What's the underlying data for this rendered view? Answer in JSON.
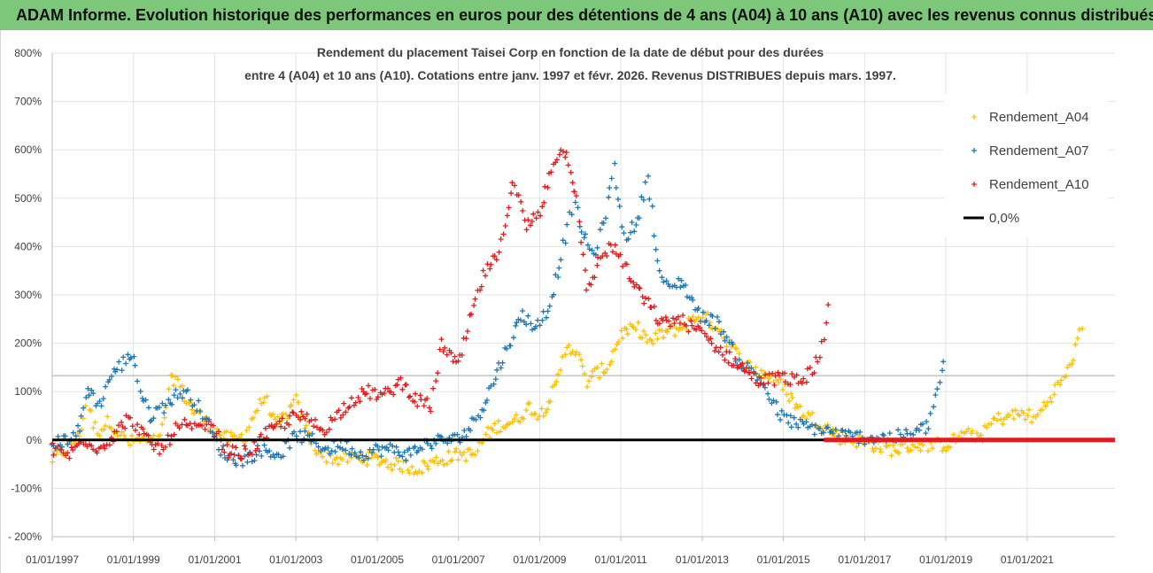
{
  "banner": {
    "text": "ADAM Informe. Evolution historique des performances en euros pour des détentions de 4 ans (A04) à 10 ans (A10) avec les revenus connus distribués",
    "color": "#7dc77b"
  },
  "chart_data": {
    "type": "scatter",
    "title_line1": "Rendement du placement Taisei Corp en fonction de la date de début pour des durées",
    "title_line2": "entre 4 (A04) et 10 ans (A10). Cotations entre janv. 1997 et févr. 2026. Revenus DISTRIBUES depuis mars. 1997.",
    "x_range": [
      "1997-01-01",
      "2023-03-01"
    ],
    "ylim": [
      -200,
      800
    ],
    "y_ticks": [
      -200,
      -100,
      0,
      100,
      200,
      300,
      400,
      500,
      600,
      700,
      800
    ],
    "y_tick_labels": [
      "- 200%",
      "-100%",
      "0%",
      "100%",
      "200%",
      "300%",
      "400%",
      "500%",
      "600%",
      "700%",
      "800%"
    ],
    "x_ticks": [
      "1997-01-01",
      "1999-01-01",
      "2001-01-01",
      "2003-01-01",
      "2005-01-01",
      "2007-01-01",
      "2009-01-01",
      "2011-01-01",
      "2013-01-01",
      "2015-01-01",
      "2017-01-01",
      "2019-01-01",
      "2021-01-01"
    ],
    "x_tick_labels": [
      "01/01/1997",
      "01/01/1999",
      "01/01/2001",
      "01/01/2003",
      "01/01/2005",
      "01/01/2007",
      "01/01/2009",
      "01/01/2011",
      "01/01/2013",
      "01/01/2015",
      "01/01/2017",
      "01/01/2019",
      "01/01/2021"
    ],
    "grid": true,
    "legend_position": "top-right",
    "reference_line_value": 133,
    "series": [
      {
        "name": "Rendement_A04",
        "color": "#ffc000",
        "points": [
          [
            "1997-01-01",
            -40
          ],
          [
            "1997-05-01",
            -20
          ],
          [
            "1997-09-01",
            10
          ],
          [
            "1997-11-15",
            90
          ],
          [
            "1998-01-01",
            30
          ],
          [
            "1998-03-01",
            20
          ],
          [
            "1998-06-01",
            40
          ],
          [
            "1998-09-01",
            10
          ],
          [
            "1998-12-01",
            -5
          ],
          [
            "1999-03-01",
            0
          ],
          [
            "1999-06-01",
            -5
          ],
          [
            "1999-09-01",
            0
          ],
          [
            "1999-12-01",
            120
          ],
          [
            "2000-01-15",
            130
          ],
          [
            "2000-04-01",
            90
          ],
          [
            "2000-07-01",
            60
          ],
          [
            "2000-10-01",
            40
          ],
          [
            "2001-01-01",
            20
          ],
          [
            "2001-04-01",
            5
          ],
          [
            "2001-07-01",
            0
          ],
          [
            "2001-10-01",
            10
          ],
          [
            "2002-01-01",
            60
          ],
          [
            "2002-04-01",
            90
          ],
          [
            "2002-07-01",
            30
          ],
          [
            "2002-10-01",
            50
          ],
          [
            "2003-01-01",
            80
          ],
          [
            "2003-03-01",
            40
          ],
          [
            "2003-06-01",
            -10
          ],
          [
            "2003-09-01",
            -30
          ],
          [
            "2004-01-01",
            -40
          ],
          [
            "2004-06-01",
            -35
          ],
          [
            "2005-01-01",
            -40
          ],
          [
            "2005-06-01",
            -50
          ],
          [
            "2006-01-01",
            -60
          ],
          [
            "2006-06-01",
            -45
          ],
          [
            "2007-01-01",
            -30
          ],
          [
            "2007-06-01",
            -30
          ],
          [
            "2007-09-01",
            10
          ],
          [
            "2008-01-01",
            30
          ],
          [
            "2008-06-01",
            40
          ],
          [
            "2008-10-01",
            70
          ],
          [
            "2009-01-01",
            50
          ],
          [
            "2009-06-01",
            110
          ],
          [
            "2009-09-01",
            200
          ],
          [
            "2009-12-01",
            180
          ],
          [
            "2010-03-01",
            120
          ],
          [
            "2010-06-01",
            140
          ],
          [
            "2010-09-01",
            150
          ],
          [
            "2011-01-01",
            220
          ],
          [
            "2011-06-01",
            230
          ],
          [
            "2011-10-01",
            200
          ],
          [
            "2012-01-01",
            220
          ],
          [
            "2012-06-01",
            230
          ],
          [
            "2013-01-01",
            260
          ],
          [
            "2013-06-01",
            230
          ],
          [
            "2014-01-01",
            160
          ],
          [
            "2014-06-01",
            140
          ],
          [
            "2014-10-01",
            130
          ],
          [
            "2015-01-01",
            110
          ],
          [
            "2015-06-01",
            60
          ],
          [
            "2016-01-01",
            30
          ],
          [
            "2016-06-01",
            5
          ],
          [
            "2017-01-01",
            -5
          ],
          [
            "2017-06-01",
            -15
          ],
          [
            "2017-10-01",
            -20
          ],
          [
            "2018-04-01",
            -10
          ],
          [
            "2019-01-01",
            -10
          ],
          [
            "2019-06-01",
            10
          ],
          [
            "2019-12-01",
            10
          ],
          [
            "2020-03-01",
            40
          ],
          [
            "2020-08-01",
            50
          ],
          [
            "2021-01-01",
            55
          ],
          [
            "2021-03-01",
            40
          ],
          [
            "2021-06-01",
            70
          ],
          [
            "2021-10-01",
            110
          ],
          [
            "2022-01-01",
            140
          ],
          [
            "2022-04-01",
            200
          ],
          [
            "2022-06-01",
            250
          ]
        ]
      },
      {
        "name": "Rendement_A07",
        "color": "#1f77b4",
        "points": [
          [
            "1997-01-01",
            -10
          ],
          [
            "1997-05-01",
            0
          ],
          [
            "1997-09-01",
            20
          ],
          [
            "1997-11-15",
            110
          ],
          [
            "1998-03-01",
            70
          ],
          [
            "1998-06-01",
            130
          ],
          [
            "1998-10-01",
            160
          ],
          [
            "1999-01-01",
            180
          ],
          [
            "1999-03-01",
            100
          ],
          [
            "1999-06-01",
            50
          ],
          [
            "1999-10-01",
            70
          ],
          [
            "2000-01-01",
            90
          ],
          [
            "2000-04-01",
            100
          ],
          [
            "2000-07-01",
            80
          ],
          [
            "2000-10-01",
            50
          ],
          [
            "2001-01-01",
            0
          ],
          [
            "2001-04-01",
            -30
          ],
          [
            "2001-07-01",
            -40
          ],
          [
            "2001-10-01",
            -40
          ],
          [
            "2002-03-01",
            -20
          ],
          [
            "2002-08-01",
            -30
          ],
          [
            "2003-01-01",
            10
          ],
          [
            "2003-06-01",
            0
          ],
          [
            "2003-10-01",
            -20
          ],
          [
            "2004-03-01",
            -10
          ],
          [
            "2004-08-01",
            -30
          ],
          [
            "2005-01-01",
            -20
          ],
          [
            "2005-06-01",
            -20
          ],
          [
            "2005-10-01",
            -30
          ],
          [
            "2006-03-01",
            -10
          ],
          [
            "2006-08-01",
            0
          ],
          [
            "2006-12-01",
            0
          ],
          [
            "2007-04-01",
            20
          ],
          [
            "2007-09-01",
            80
          ],
          [
            "2008-01-01",
            150
          ],
          [
            "2008-04-01",
            200
          ],
          [
            "2008-08-01",
            260
          ],
          [
            "2008-12-01",
            230
          ],
          [
            "2009-04-01",
            280
          ],
          [
            "2009-08-01",
            400
          ],
          [
            "2009-11-01",
            500
          ],
          [
            "2010-02-01",
            420
          ],
          [
            "2010-05-01",
            380
          ],
          [
            "2010-08-01",
            450
          ],
          [
            "2010-11-01",
            560
          ],
          [
            "2011-02-01",
            420
          ],
          [
            "2011-06-01",
            450
          ],
          [
            "2011-09-01",
            550
          ],
          [
            "2011-12-01",
            360
          ],
          [
            "2012-03-01",
            310
          ],
          [
            "2012-07-01",
            330
          ],
          [
            "2012-12-01",
            260
          ],
          [
            "2013-06-01",
            240
          ],
          [
            "2013-12-01",
            160
          ],
          [
            "2014-06-01",
            130
          ],
          [
            "2014-12-01",
            50
          ],
          [
            "2015-06-01",
            30
          ],
          [
            "2016-01-01",
            20
          ],
          [
            "2016-06-01",
            10
          ],
          [
            "2017-01-01",
            5
          ],
          [
            "2017-08-01",
            5
          ],
          [
            "2018-03-01",
            10
          ],
          [
            "2018-08-01",
            30
          ],
          [
            "2018-10-01",
            90
          ],
          [
            "2019-01-01",
            170
          ]
        ]
      },
      {
        "name": "Rendement_A10",
        "color": "#e31a1c",
        "points": [
          [
            "1997-01-01",
            -20
          ],
          [
            "1997-06-01",
            -30
          ],
          [
            "1997-09-01",
            -10
          ],
          [
            "1997-12-01",
            0
          ],
          [
            "1998-03-01",
            -20
          ],
          [
            "1998-07-01",
            10
          ],
          [
            "1998-11-01",
            40
          ],
          [
            "1999-02-01",
            30
          ],
          [
            "1999-06-01",
            -10
          ],
          [
            "1999-10-01",
            -20
          ],
          [
            "2000-01-01",
            20
          ],
          [
            "2000-04-01",
            30
          ],
          [
            "2000-07-01",
            20
          ],
          [
            "2000-10-01",
            30
          ],
          [
            "2001-01-01",
            20
          ],
          [
            "2001-04-01",
            -20
          ],
          [
            "2001-08-01",
            -30
          ],
          [
            "2001-12-01",
            -20
          ],
          [
            "2002-04-01",
            10
          ],
          [
            "2002-08-01",
            30
          ],
          [
            "2003-01-01",
            50
          ],
          [
            "2003-05-01",
            40
          ],
          [
            "2003-09-01",
            20
          ],
          [
            "2004-01-01",
            50
          ],
          [
            "2004-05-01",
            80
          ],
          [
            "2004-10-01",
            100
          ],
          [
            "2005-03-01",
            90
          ],
          [
            "2005-08-01",
            120
          ],
          [
            "2006-01-01",
            80
          ],
          [
            "2006-05-01",
            70
          ],
          [
            "2006-08-01",
            200
          ],
          [
            "2007-01-01",
            150
          ],
          [
            "2007-05-01",
            260
          ],
          [
            "2007-09-01",
            350
          ],
          [
            "2008-01-01",
            380
          ],
          [
            "2008-05-01",
            540
          ],
          [
            "2008-09-01",
            440
          ],
          [
            "2009-01-01",
            470
          ],
          [
            "2009-05-01",
            580
          ],
          [
            "2009-09-01",
            600
          ],
          [
            "2009-12-01",
            500
          ],
          [
            "2010-03-01",
            300
          ],
          [
            "2010-07-01",
            380
          ],
          [
            "2010-10-01",
            400
          ],
          [
            "2011-01-01",
            380
          ],
          [
            "2011-04-01",
            330
          ],
          [
            "2011-09-01",
            280
          ],
          [
            "2012-01-01",
            240
          ],
          [
            "2012-06-01",
            250
          ],
          [
            "2013-01-01",
            220
          ],
          [
            "2013-07-01",
            180
          ],
          [
            "2014-01-01",
            150
          ],
          [
            "2014-06-01",
            120
          ],
          [
            "2014-12-01",
            130
          ],
          [
            "2015-06-01",
            120
          ],
          [
            "2015-10-01",
            150
          ],
          [
            "2016-01-01",
            200
          ],
          [
            "2016-03-01",
            300
          ]
        ]
      },
      {
        "name": "0,0%",
        "color": "#000000",
        "line": true,
        "points": [
          [
            "1997-01-01",
            0
          ],
          [
            "2016-01-01",
            0
          ]
        ]
      },
      {
        "name": "",
        "color": "#e31a1c",
        "line": true,
        "points": [
          [
            "2016-01-01",
            0
          ],
          [
            "2023-03-01",
            0
          ]
        ]
      }
    ]
  }
}
